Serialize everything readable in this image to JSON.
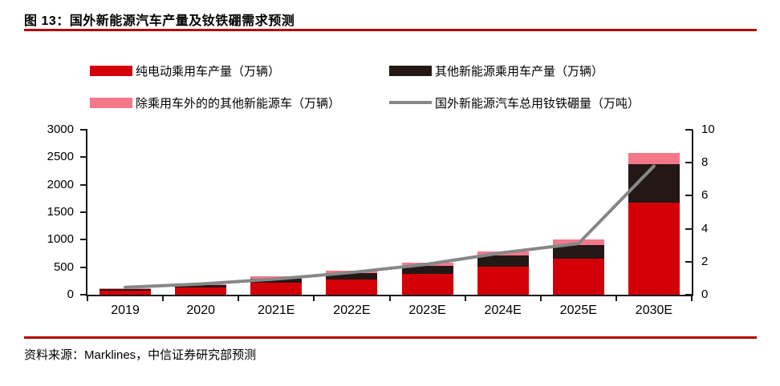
{
  "header": {
    "title": "图 13：国外新能源汽车产量及钕铁硼需求预测"
  },
  "footer": {
    "source": "资料来源：Marklines，中信证券研究部预测"
  },
  "colors": {
    "bev_red": "#d40008",
    "other_passenger_dark": "#231815",
    "non_passenger_pink": "#f4788a",
    "ndfeb_line_gray": "#878787",
    "rule_dark_red": "#b00000",
    "axis_black": "#1a1a1a"
  },
  "legend": {
    "items": [
      {
        "label": "纯电动乘用车产量（万辆）",
        "color_key": "bev_red",
        "shape": "box",
        "col": 0,
        "row": 0
      },
      {
        "label": "其他新能源乘用车产量（万辆）",
        "color_key": "other_passenger_dark",
        "shape": "box",
        "col": 1,
        "row": 0
      },
      {
        "label": "除乘用车外的的其他新能源车（万辆）",
        "color_key": "non_passenger_pink",
        "shape": "box",
        "col": 0,
        "row": 1
      },
      {
        "label": "国外新能源汽车总用钕铁硼量（万吨）",
        "color_key": "ndfeb_line_gray",
        "shape": "line",
        "col": 1,
        "row": 1
      }
    ]
  },
  "chart_data": {
    "type": "bar",
    "subtype": "stacked-bars-with-secondary-axis-line",
    "title": "国外新能源汽车产量及钕铁硼需求预测",
    "categories": [
      "2019",
      "2020",
      "2021E",
      "2022E",
      "2023E",
      "2024E",
      "2025E",
      "2030E"
    ],
    "series": [
      {
        "name": "纯电动乘用车产量（万辆）",
        "type": "bar",
        "axis": "left",
        "color_key": "bev_red",
        "values": [
          75,
          130,
          220,
          270,
          380,
          510,
          660,
          1670
        ]
      },
      {
        "name": "其他新能源乘用车产量（万辆）",
        "type": "bar",
        "axis": "left",
        "color_key": "other_passenger_dark",
        "values": [
          25,
          38,
          72,
          118,
          145,
          200,
          250,
          700
        ]
      },
      {
        "name": "除乘用车外的的其他新能源车（万辆）",
        "type": "bar",
        "axis": "left",
        "color_key": "non_passenger_pink",
        "values": [
          12,
          20,
          45,
          48,
          60,
          75,
          90,
          210
        ]
      },
      {
        "name": "国外新能源汽车总用钕铁硼量（万吨）",
        "type": "line",
        "axis": "right",
        "color_key": "ndfeb_line_gray",
        "values": [
          0.45,
          0.65,
          0.95,
          1.35,
          1.85,
          2.55,
          3.1,
          7.8
        ]
      }
    ],
    "left_axis": {
      "label": "",
      "ticks": [
        0,
        500,
        1000,
        1500,
        2000,
        2500,
        3000
      ],
      "min": 0,
      "max": 3000
    },
    "right_axis": {
      "label": "",
      "ticks": [
        0,
        2,
        4,
        6,
        8,
        10
      ],
      "min": 0,
      "max": 10
    },
    "grid": false,
    "legend_position": "top"
  }
}
